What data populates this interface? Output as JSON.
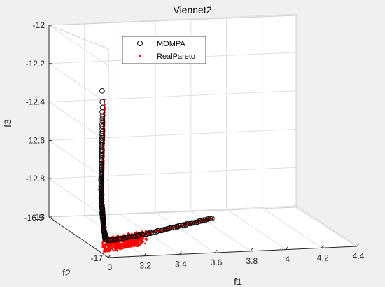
{
  "chart_data": {
    "type": "scatter",
    "title": "Viennet2",
    "xlabel": "f1",
    "ylabel": "f2",
    "zlabel": "f3",
    "xlim": [
      3,
      4.4
    ],
    "ylim": [
      -17,
      -16.5
    ],
    "zlim": [
      -13,
      -12
    ],
    "xticks": [
      "3",
      "3.2",
      "3.4",
      "3.6",
      "3.8",
      "4",
      "4.2",
      "4.4"
    ],
    "yticks": [
      "-16.5",
      "-17"
    ],
    "zticks": [
      "-12",
      "-12.2",
      "-12.4",
      "-12.6",
      "-12.8",
      "-13"
    ],
    "grid": true,
    "legend_position": "top-left",
    "series": [
      {
        "name": "MOMPA",
        "marker": "open-circle",
        "color": "#000000",
        "curves": [
          {
            "from": [
              3.0,
              -16.95,
              -12.15
            ],
            "to": [
              3.05,
              -16.9,
              -12.95
            ],
            "count": 110
          },
          {
            "from": [
              3.05,
              -16.9,
              -12.95
            ],
            "to": [
              3.85,
              -16.6,
              -13.0
            ],
            "count": 70
          }
        ]
      },
      {
        "name": "RealPareto",
        "marker": "dot",
        "color": "#ff0000",
        "curves": [
          {
            "from": [
              3.01,
              -16.95,
              -12.2
            ],
            "to": [
              3.05,
              -16.9,
              -12.95
            ],
            "count": 600
          },
          {
            "from": [
              3.05,
              -16.9,
              -12.95
            ],
            "to": [
              3.85,
              -16.6,
              -13.0
            ],
            "count": 250
          }
        ]
      }
    ]
  }
}
